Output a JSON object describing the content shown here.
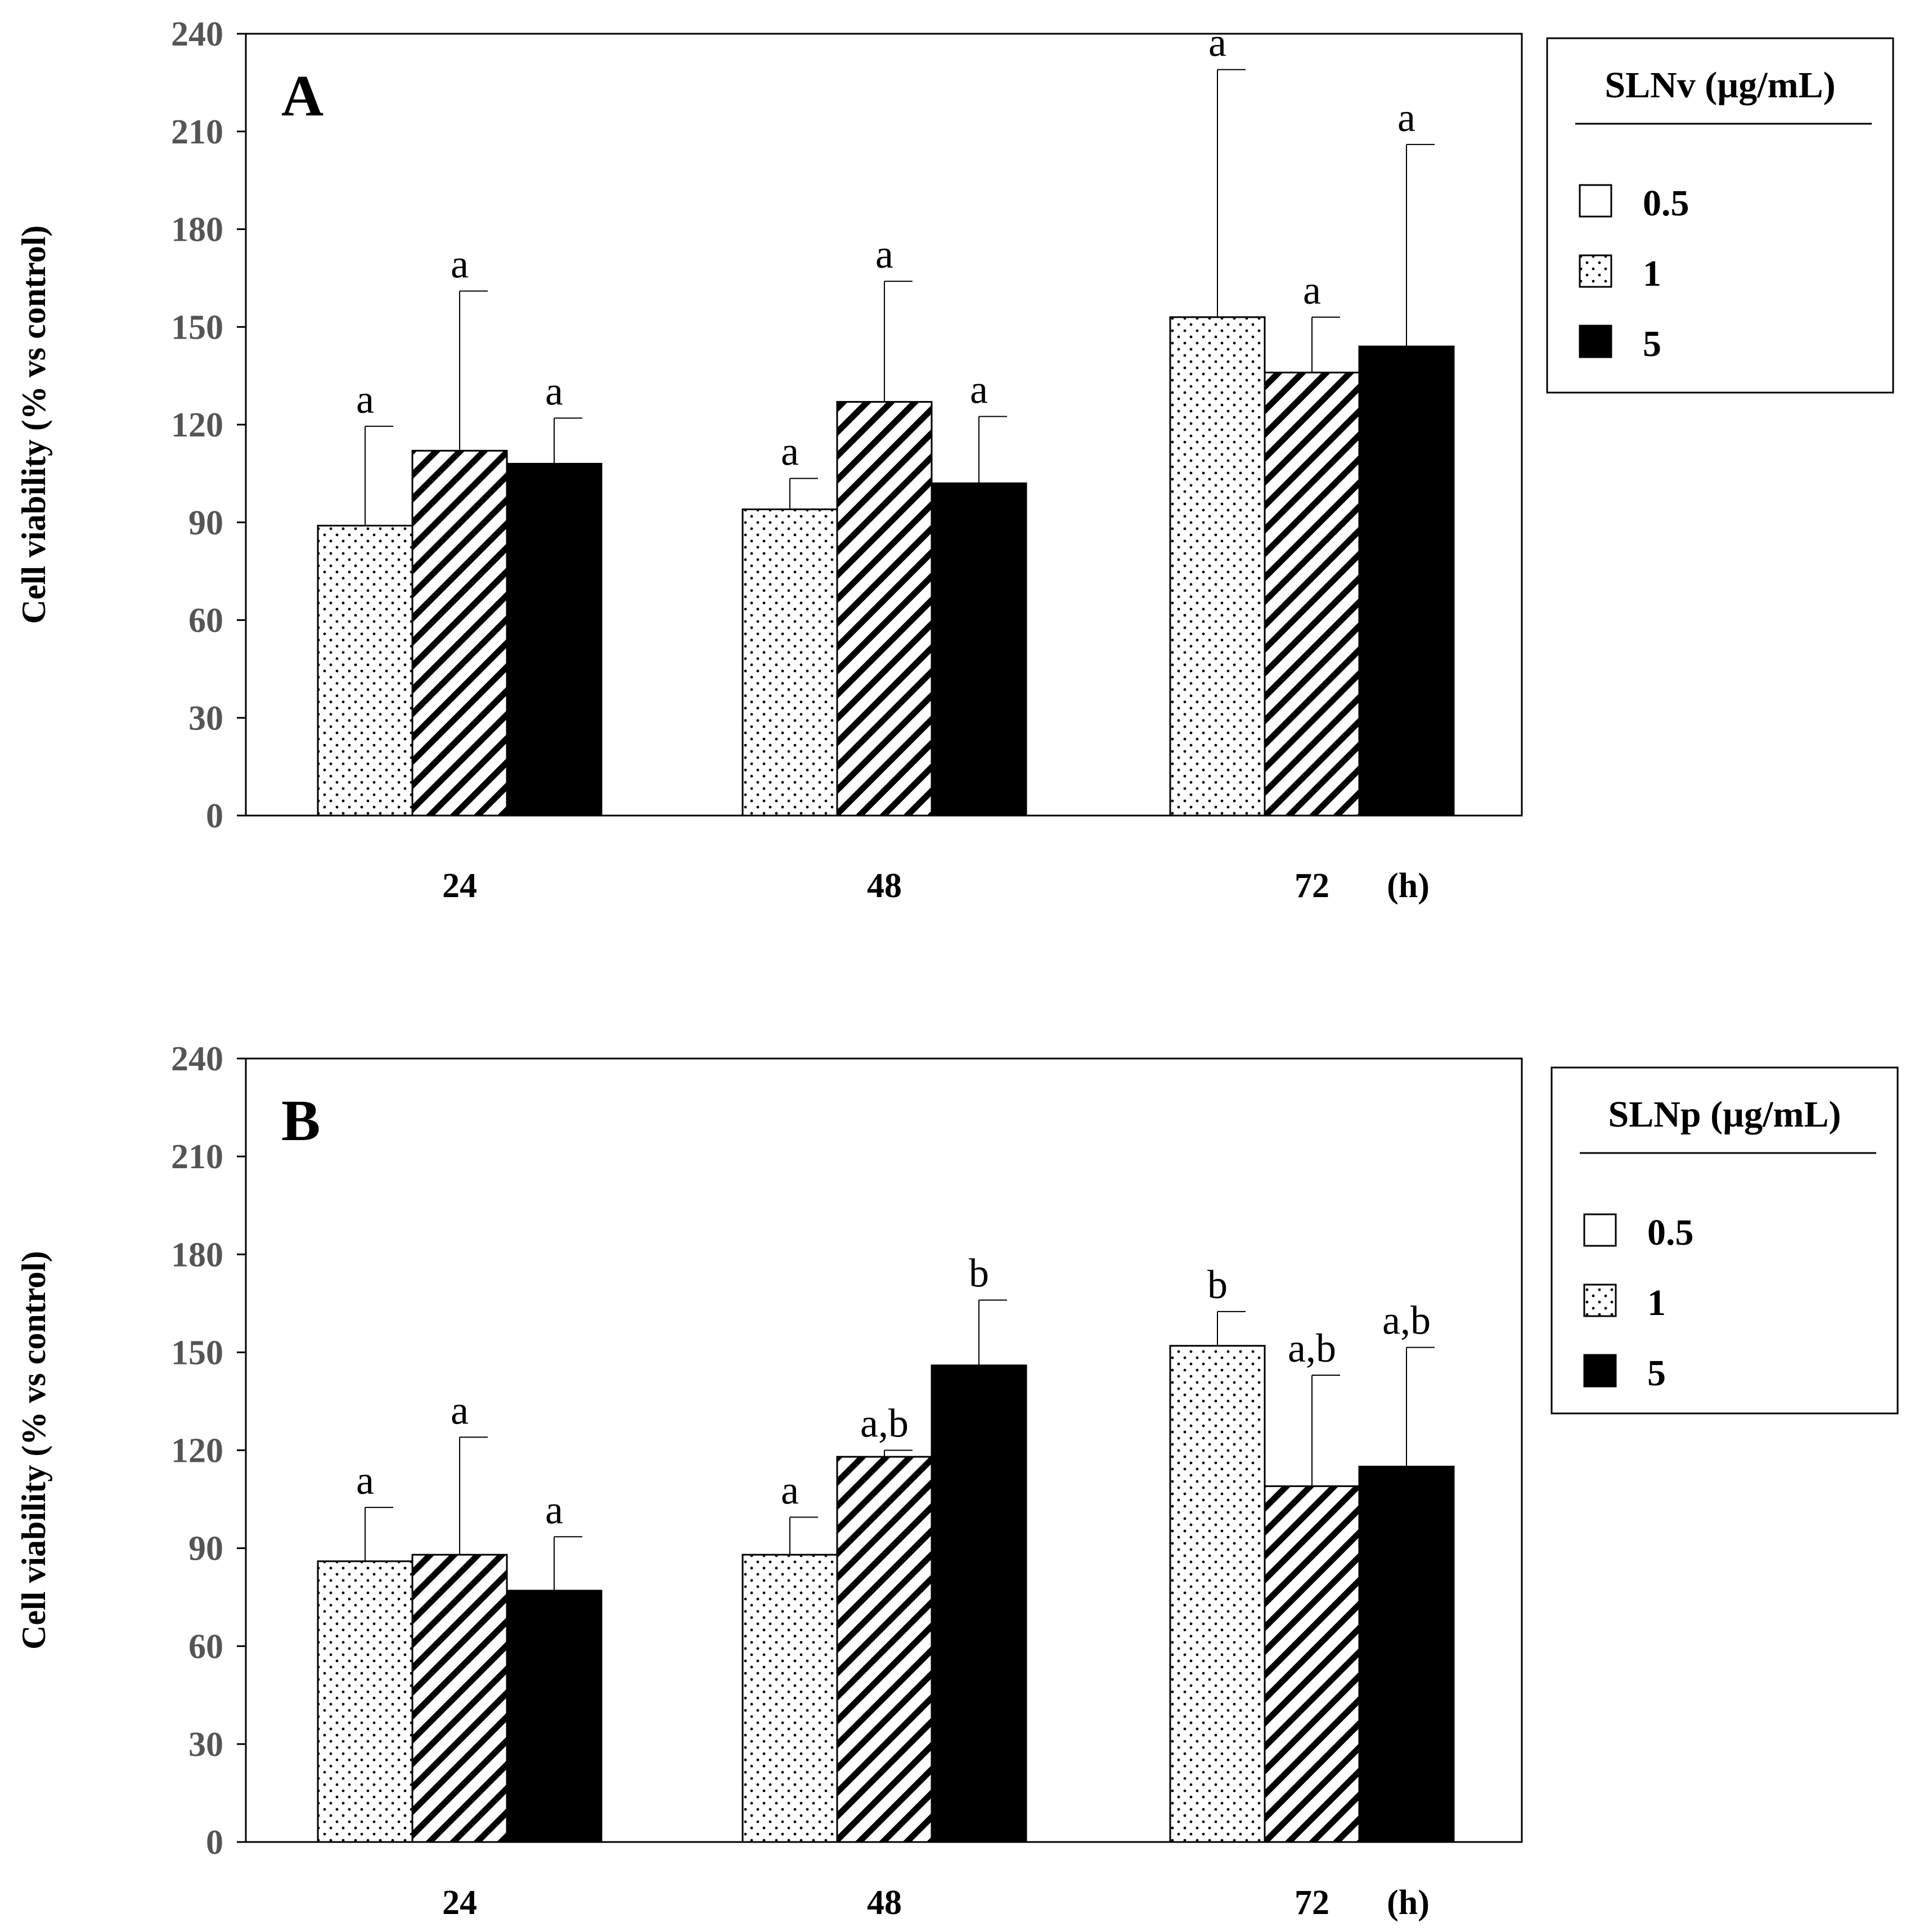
{
  "chart_data": [
    {
      "type": "bar",
      "panel_label": "A",
      "ylabel": "Cell viability (% vs control)",
      "ylim": [
        0,
        240
      ],
      "yticks": [
        0,
        30,
        60,
        90,
        120,
        150,
        180,
        210,
        240
      ],
      "categories": [
        "24",
        "48",
        "72"
      ],
      "x_unit": "(h)",
      "legend": {
        "title": "SLNv (µg/mL)",
        "placement": "right",
        "entries": [
          {
            "label": "0.5",
            "swatch": "empty"
          },
          {
            "label": "1",
            "swatch": "dotted"
          },
          {
            "label": "5",
            "swatch": "solid"
          }
        ]
      },
      "series": [
        {
          "pattern": "dotted",
          "values": [
            89,
            94,
            153
          ],
          "error": [
            30.5,
            9.5,
            76
          ],
          "labels": [
            "a",
            "a",
            "a"
          ]
        },
        {
          "pattern": "hatched",
          "values": [
            112,
            127,
            136
          ],
          "error": [
            49,
            37,
            17
          ],
          "labels": [
            "a",
            "a",
            "a"
          ]
        },
        {
          "pattern": "solid",
          "values": [
            108,
            102,
            144
          ],
          "error": [
            14,
            20.5,
            62
          ],
          "labels": [
            "a",
            "a",
            "a"
          ]
        }
      ]
    },
    {
      "type": "bar",
      "panel_label": "B",
      "ylabel": "Cell viability (% vs control)",
      "ylim": [
        0,
        240
      ],
      "yticks": [
        0,
        30,
        60,
        90,
        120,
        150,
        180,
        210,
        240
      ],
      "categories": [
        "24",
        "48",
        "72"
      ],
      "x_unit": "(h)",
      "legend": {
        "title": "SLNp (µg/mL)",
        "placement": "right",
        "entries": [
          {
            "label": "0.5",
            "swatch": "empty"
          },
          {
            "label": "1",
            "swatch": "dotted"
          },
          {
            "label": "5",
            "swatch": "solid"
          }
        ]
      },
      "series": [
        {
          "pattern": "dotted",
          "values": [
            86,
            88,
            152
          ],
          "error": [
            16.5,
            11.5,
            10.5
          ],
          "labels": [
            "a",
            "a",
            "b"
          ]
        },
        {
          "pattern": "hatched",
          "values": [
            88,
            118,
            109
          ],
          "error": [
            36,
            2,
            34
          ],
          "labels": [
            "a",
            "a,b",
            "a,b"
          ]
        },
        {
          "pattern": "solid",
          "values": [
            77,
            146,
            115
          ],
          "error": [
            16.5,
            20,
            36.5
          ],
          "labels": [
            "a",
            "b",
            "a,b"
          ]
        }
      ]
    }
  ]
}
